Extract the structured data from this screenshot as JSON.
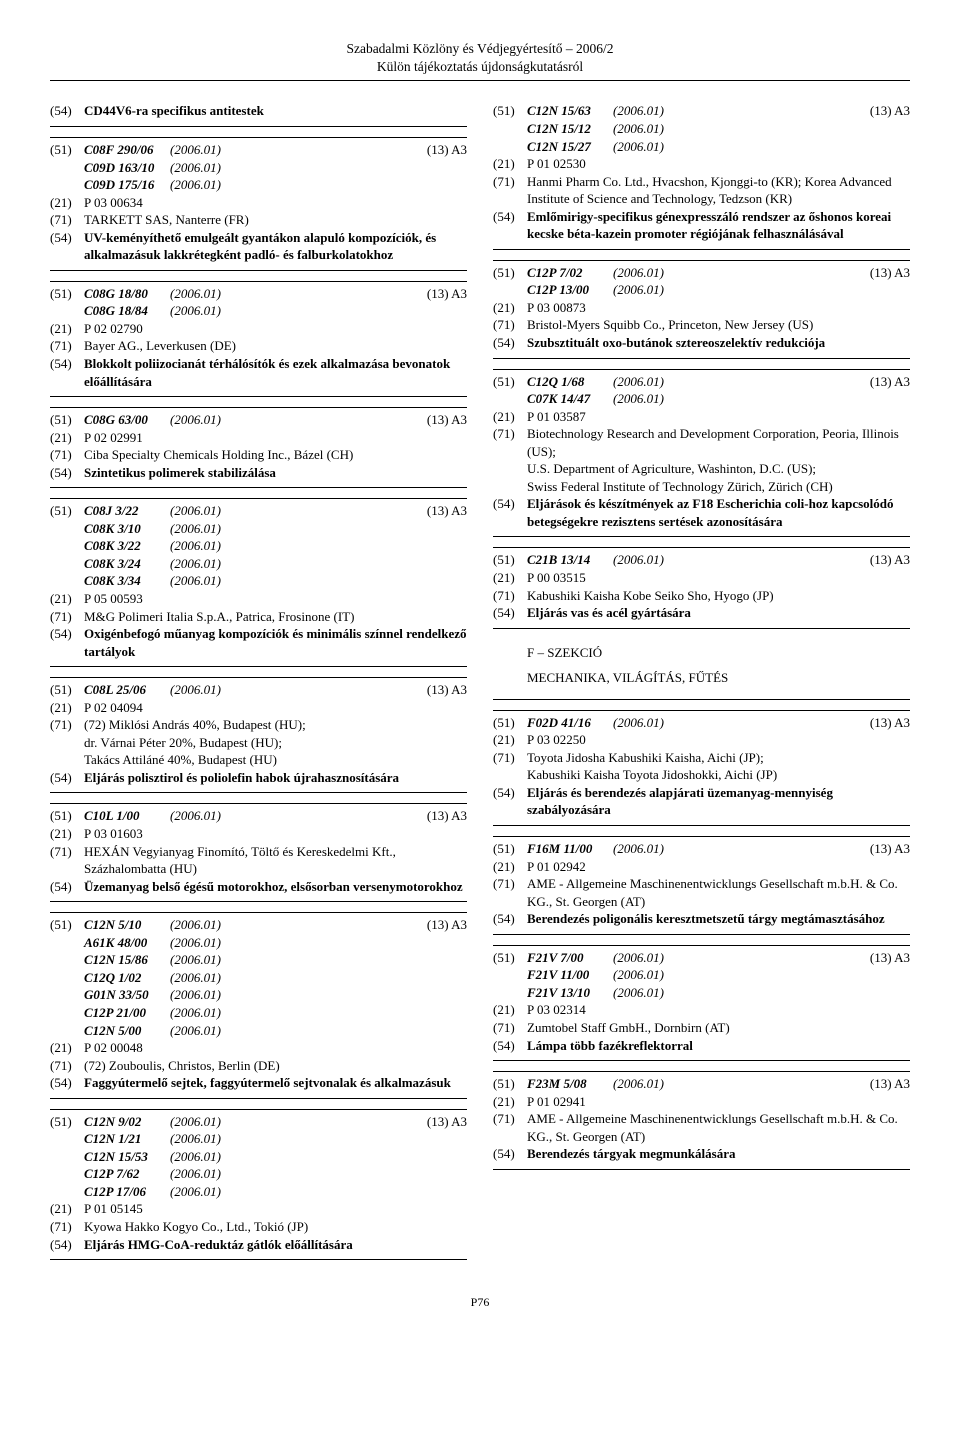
{
  "header": {
    "title": "Szabadalmi Közlöny és Védjegyértesítő – 2006/2",
    "subtitle": "Külön tájékoztatás újdonságkutatásról"
  },
  "page_number": "P76",
  "left": [
    {
      "lines": [
        {
          "tag": "(54)",
          "text": "CD44V6-ra specifikus antitestek",
          "bold": true
        }
      ]
    },
    {
      "lines": [
        {
          "tag": "(51)",
          "code": "C08F 290/06",
          "date": "(2006.01)",
          "right": "(13) A3"
        },
        {
          "tag": "",
          "code": "C09D 163/10",
          "date": "(2006.01)"
        },
        {
          "tag": "",
          "code": "C09D 175/16",
          "date": "(2006.01)"
        },
        {
          "tag": "(21)",
          "text": "P 03 00634"
        },
        {
          "tag": "(71)",
          "text": "TARKETT SAS, Nanterre (FR)"
        },
        {
          "tag": "(54)",
          "text": "UV-keményíthető emulgeált gyantákon alapuló kompozíciók, és alkalmazásuk lakkrétegként padló- és falburkolatokhoz",
          "bold": true
        }
      ]
    },
    {
      "lines": [
        {
          "tag": "(51)",
          "code": "C08G 18/80",
          "date": "(2006.01)",
          "right": "(13) A3"
        },
        {
          "tag": "",
          "code": "C08G 18/84",
          "date": "(2006.01)"
        },
        {
          "tag": "(21)",
          "text": "P 02 02790"
        },
        {
          "tag": "(71)",
          "text": "Bayer AG., Leverkusen (DE)"
        },
        {
          "tag": "(54)",
          "text": "Blokkolt poliizocianát térhálósítók és ezek alkalmazása bevonatok előállítására",
          "bold": true
        }
      ]
    },
    {
      "lines": [
        {
          "tag": "(51)",
          "code": "C08G 63/00",
          "date": "(2006.01)",
          "right": "(13) A3"
        },
        {
          "tag": "(21)",
          "text": "P 02 02991"
        },
        {
          "tag": "(71)",
          "text": "Ciba Specialty Chemicals Holding Inc., Bázel (CH)"
        },
        {
          "tag": "(54)",
          "text": "Szintetikus polimerek stabilizálása",
          "bold": true
        }
      ]
    },
    {
      "lines": [
        {
          "tag": "(51)",
          "code": "C08J 3/22",
          "date": "(2006.01)",
          "right": "(13) A3"
        },
        {
          "tag": "",
          "code": "C08K 3/10",
          "date": "(2006.01)"
        },
        {
          "tag": "",
          "code": "C08K 3/22",
          "date": "(2006.01)"
        },
        {
          "tag": "",
          "code": "C08K 3/24",
          "date": "(2006.01)"
        },
        {
          "tag": "",
          "code": "C08K 3/34",
          "date": "(2006.01)"
        },
        {
          "tag": "(21)",
          "text": "P 05 00593"
        },
        {
          "tag": "(71)",
          "text": "M&G Polimeri Italia S.p.A., Patrica, Frosinone (IT)"
        },
        {
          "tag": "(54)",
          "text": "Oxigénbefogó műanyag kompozíciók és minimális színnel rendelkező tartályok",
          "bold": true
        }
      ]
    },
    {
      "lines": [
        {
          "tag": "(51)",
          "code": "C08L 25/06",
          "date": "(2006.01)",
          "right": "(13) A3"
        },
        {
          "tag": "(21)",
          "text": "P 02 04094"
        },
        {
          "tag": "(71)",
          "text": "(72) Miklósi András 40%, Budapest (HU);"
        },
        {
          "tag": "",
          "text": "dr. Várnai Péter 20%, Budapest (HU);"
        },
        {
          "tag": "",
          "text": "Takács Attiláné 40%, Budapest (HU)"
        },
        {
          "tag": "(54)",
          "text": "Eljárás polisztirol és poliolefin habok újrahasznosítására",
          "bold": true
        }
      ]
    },
    {
      "lines": [
        {
          "tag": "(51)",
          "code": "C10L 1/00",
          "date": "(2006.01)",
          "right": "(13) A3"
        },
        {
          "tag": "(21)",
          "text": "P 03 01603"
        },
        {
          "tag": "(71)",
          "text": "HEXÁN Vegyianyag Finomító, Töltő és Kereskedelmi Kft., Százhalombatta (HU)"
        },
        {
          "tag": "(54)",
          "text": "Üzemanyag belső égésű motorokhoz, elsősorban versenymotorokhoz",
          "bold": true
        }
      ]
    },
    {
      "lines": [
        {
          "tag": "(51)",
          "code": "C12N 5/10",
          "date": "(2006.01)",
          "right": "(13) A3"
        },
        {
          "tag": "",
          "code": "A61K 48/00",
          "date": "(2006.01)"
        },
        {
          "tag": "",
          "code": "C12N 15/86",
          "date": "(2006.01)"
        },
        {
          "tag": "",
          "code": "C12Q 1/02",
          "date": "(2006.01)"
        },
        {
          "tag": "",
          "code": "G01N 33/50",
          "date": "(2006.01)"
        },
        {
          "tag": "",
          "code": "C12P 21/00",
          "date": "(2006.01)"
        },
        {
          "tag": "",
          "code": "C12N 5/00",
          "date": "(2006.01)"
        },
        {
          "tag": "(21)",
          "text": "P 02 00048"
        },
        {
          "tag": "(71)",
          "text": "(72) Zouboulis, Christos, Berlin (DE)"
        },
        {
          "tag": "(54)",
          "text": "Faggyútermelő sejtek, faggyútermelő sejtvonalak és alkalmazásuk",
          "bold": true
        }
      ]
    },
    {
      "lines": [
        {
          "tag": "(51)",
          "code": "C12N 9/02",
          "date": "(2006.01)",
          "right": "(13) A3"
        },
        {
          "tag": "",
          "code": "C12N 1/21",
          "date": "(2006.01)"
        },
        {
          "tag": "",
          "code": "C12N 15/53",
          "date": "(2006.01)"
        },
        {
          "tag": "",
          "code": "C12P 7/62",
          "date": "(2006.01)"
        },
        {
          "tag": "",
          "code": "C12P 17/06",
          "date": "(2006.01)"
        },
        {
          "tag": "(21)",
          "text": "P 01 05145"
        },
        {
          "tag": "(71)",
          "text": "Kyowa Hakko Kogyo Co., Ltd., Tokió (JP)"
        },
        {
          "tag": "(54)",
          "text": "Eljárás HMG-CoA-reduktáz gátlók előállítására",
          "bold": true
        }
      ]
    }
  ],
  "right": [
    {
      "no_top_border": true,
      "lines": [
        {
          "tag": "(51)",
          "code": "C12N 15/63",
          "date": "(2006.01)",
          "right": "(13) A3"
        },
        {
          "tag": "",
          "code": "C12N 15/12",
          "date": "(2006.01)"
        },
        {
          "tag": "",
          "code": "C12N 15/27",
          "date": "(2006.01)"
        },
        {
          "tag": "(21)",
          "text": "P 01 02530"
        },
        {
          "tag": "(71)",
          "text": "Hanmi Pharm Co. Ltd., Hvacshon, Kjonggi-to (KR); Korea Advanced Institute of Science and Technology, Tedzson (KR)"
        },
        {
          "tag": "(54)",
          "text": "Emlőmirigy-specifikus génexpresszáló rendszer az őshonos koreai kecske béta-kazein promoter régiójának felhasználásával",
          "bold": true
        }
      ]
    },
    {
      "lines": [
        {
          "tag": "(51)",
          "code": "C12P 7/02",
          "date": "(2006.01)",
          "right": "(13) A3"
        },
        {
          "tag": "",
          "code": "C12P 13/00",
          "date": "(2006.01)"
        },
        {
          "tag": "(21)",
          "text": "P 03 00873"
        },
        {
          "tag": "(71)",
          "text": "Bristol-Myers Squibb Co., Princeton, New Jersey (US)"
        },
        {
          "tag": "(54)",
          "text": "Szubsztituált oxo-butánok sztereoszelektív redukciója",
          "bold": true
        }
      ]
    },
    {
      "lines": [
        {
          "tag": "(51)",
          "code": "C12Q 1/68",
          "date": "(2006.01)",
          "right": "(13) A3"
        },
        {
          "tag": "",
          "code": "C07K 14/47",
          "date": "(2006.01)"
        },
        {
          "tag": "(21)",
          "text": "P 01 03587"
        },
        {
          "tag": "(71)",
          "text": "Biotechnology Research and Development Corporation, Peoria, Illinois (US);"
        },
        {
          "tag": "",
          "text": "U.S. Department of Agriculture, Washinton, D.C. (US);"
        },
        {
          "tag": "",
          "text": "Swiss Federal Institute of Technology Zürich, Zürich (CH)"
        },
        {
          "tag": "(54)",
          "text": "Eljárások és készítmények az F18 Escherichia coli-hoz kapcsolódó betegségekre rezisztens sertések azonosítására",
          "bold": true
        }
      ]
    },
    {
      "lines": [
        {
          "tag": "(51)",
          "code": "C21B 13/14",
          "date": "(2006.01)",
          "right": "(13) A3"
        },
        {
          "tag": "(21)",
          "text": "P 00 03515"
        },
        {
          "tag": "(71)",
          "text": "Kabushiki Kaisha Kobe Seiko Sho, Hyogo (JP)"
        },
        {
          "tag": "(54)",
          "text": "Eljárás vas és acél gyártására",
          "bold": true
        }
      ]
    },
    {
      "section_heading": true,
      "lines": [
        {
          "tag": "",
          "text": "F – SZEKCIÓ"
        },
        {
          "tag": "",
          "text": "MECHANIKA, VILÁGÍTÁS, FŰTÉS"
        }
      ]
    },
    {
      "lines": [
        {
          "tag": "(51)",
          "code": "F02D 41/16",
          "date": "(2006.01)",
          "right": "(13) A3"
        },
        {
          "tag": "(21)",
          "text": "P 03 02250"
        },
        {
          "tag": "(71)",
          "text": "Toyota Jidosha Kabushiki Kaisha, Aichi (JP);"
        },
        {
          "tag": "",
          "text": "Kabushiki Kaisha Toyota Jidoshokki, Aichi (JP)"
        },
        {
          "tag": "(54)",
          "text": "Eljárás és berendezés alapjárati üzemanyag-mennyiség szabályozására",
          "bold": true
        }
      ]
    },
    {
      "lines": [
        {
          "tag": "(51)",
          "code": "F16M 11/00",
          "date": "(2006.01)",
          "right": "(13) A3"
        },
        {
          "tag": "(21)",
          "text": "P 01 02942"
        },
        {
          "tag": "(71)",
          "text": "AME - Allgemeine Maschinenentwicklungs Gesellschaft m.b.H. & Co. KG., St. Georgen (AT)"
        },
        {
          "tag": "(54)",
          "text": "Berendezés poligonális keresztmetszetű tárgy megtámasztásához",
          "bold": true
        }
      ]
    },
    {
      "lines": [
        {
          "tag": "(51)",
          "code": "F21V 7/00",
          "date": "(2006.01)",
          "right": "(13) A3"
        },
        {
          "tag": "",
          "code": "F21V 11/00",
          "date": "(2006.01)"
        },
        {
          "tag": "",
          "code": "F21V 13/10",
          "date": "(2006.01)"
        },
        {
          "tag": "(21)",
          "text": "P 03 02314"
        },
        {
          "tag": "(71)",
          "text": "Zumtobel Staff GmbH., Dornbirn (AT)"
        },
        {
          "tag": "(54)",
          "text": "Lámpa több fazékreflektorral",
          "bold": true
        }
      ]
    },
    {
      "lines": [
        {
          "tag": "(51)",
          "code": "F23M 5/08",
          "date": "(2006.01)",
          "right": "(13) A3"
        },
        {
          "tag": "(21)",
          "text": "P 01 02941"
        },
        {
          "tag": "(71)",
          "text": "AME - Allgemeine Maschinenentwicklungs Gesellschaft m.b.H. & Co. KG., St. Georgen (AT)"
        },
        {
          "tag": "(54)",
          "text": "Berendezés tárgyak megmunkálására",
          "bold": true
        }
      ]
    }
  ]
}
